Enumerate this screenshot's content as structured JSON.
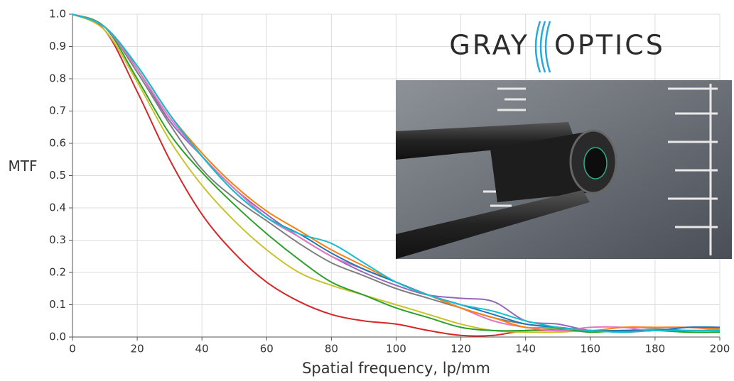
{
  "chart_data": {
    "type": "line",
    "xlabel": "Spatial frequency, lp/mm",
    "ylabel": "MTF",
    "xlim": [
      0,
      200
    ],
    "ylim": [
      0,
      1
    ],
    "xticks": [
      0,
      20,
      40,
      60,
      80,
      100,
      120,
      140,
      160,
      180,
      200
    ],
    "yticks": [
      {
        "value": 0,
        "label": "0.0"
      },
      0.1,
      0.2,
      0.3,
      0.4,
      0.5,
      0.6,
      0.7,
      0.8,
      0.9,
      {
        "value": 1,
        "label": "1.0"
      }
    ],
    "grid": true,
    "x": [
      0,
      10,
      20,
      30,
      40,
      50,
      60,
      70,
      80,
      90,
      100,
      110,
      120,
      130,
      140,
      150,
      160,
      170,
      180,
      190,
      200
    ],
    "series": [
      {
        "color": "#d62728",
        "values": [
          1.0,
          0.95,
          0.76,
          0.55,
          0.38,
          0.26,
          0.17,
          0.11,
          0.07,
          0.05,
          0.04,
          0.02,
          0.005,
          0.005,
          0.02,
          0.02,
          0.02,
          0.015,
          0.02,
          0.02,
          0.02
        ]
      },
      {
        "color": "#c9c22a",
        "values": [
          1.0,
          0.95,
          0.79,
          0.61,
          0.47,
          0.36,
          0.27,
          0.2,
          0.16,
          0.13,
          0.1,
          0.07,
          0.04,
          0.02,
          0.015,
          0.015,
          0.02,
          0.02,
          0.02,
          0.02,
          0.02
        ]
      },
      {
        "color": "#2ca02c",
        "values": [
          1.0,
          0.96,
          0.8,
          0.63,
          0.51,
          0.41,
          0.32,
          0.24,
          0.17,
          0.13,
          0.09,
          0.06,
          0.03,
          0.02,
          0.02,
          0.025,
          0.015,
          0.02,
          0.02,
          0.015,
          0.015
        ]
      },
      {
        "color": "#7f7f7f",
        "values": [
          1.0,
          0.96,
          0.82,
          0.66,
          0.52,
          0.43,
          0.36,
          0.29,
          0.23,
          0.19,
          0.15,
          0.12,
          0.09,
          0.06,
          0.04,
          0.03,
          0.02,
          0.02,
          0.025,
          0.02,
          0.02
        ]
      },
      {
        "color": "#9467bd",
        "values": [
          1.0,
          0.96,
          0.83,
          0.67,
          0.56,
          0.46,
          0.38,
          0.31,
          0.25,
          0.2,
          0.16,
          0.13,
          0.12,
          0.11,
          0.05,
          0.04,
          0.02,
          0.02,
          0.02,
          0.03,
          0.03
        ]
      },
      {
        "color": "#e377c2",
        "values": [
          1.0,
          0.96,
          0.83,
          0.68,
          0.56,
          0.46,
          0.37,
          0.31,
          0.25,
          0.21,
          0.17,
          0.13,
          0.09,
          0.05,
          0.03,
          0.02,
          0.03,
          0.03,
          0.02,
          0.03,
          0.02
        ]
      },
      {
        "color": "#ff7f0e",
        "values": [
          1.0,
          0.96,
          0.84,
          0.69,
          0.57,
          0.47,
          0.39,
          0.33,
          0.27,
          0.22,
          0.17,
          0.13,
          0.09,
          0.06,
          0.03,
          0.03,
          0.02,
          0.03,
          0.03,
          0.03,
          0.025
        ]
      },
      {
        "color": "#1f77b4",
        "values": [
          1.0,
          0.96,
          0.84,
          0.69,
          0.56,
          0.45,
          0.37,
          0.32,
          0.26,
          0.21,
          0.17,
          0.13,
          0.1,
          0.07,
          0.04,
          0.03,
          0.02,
          0.02,
          0.02,
          0.03,
          0.03
        ]
      },
      {
        "color": "#17becf",
        "values": [
          1.0,
          0.96,
          0.84,
          0.69,
          0.56,
          0.45,
          0.37,
          0.32,
          0.29,
          0.23,
          0.17,
          0.13,
          0.1,
          0.08,
          0.05,
          0.03,
          0.02,
          0.015,
          0.02,
          0.02,
          0.02
        ]
      }
    ]
  },
  "logo": {
    "left": "GRAY",
    "right": "OPTICS"
  }
}
